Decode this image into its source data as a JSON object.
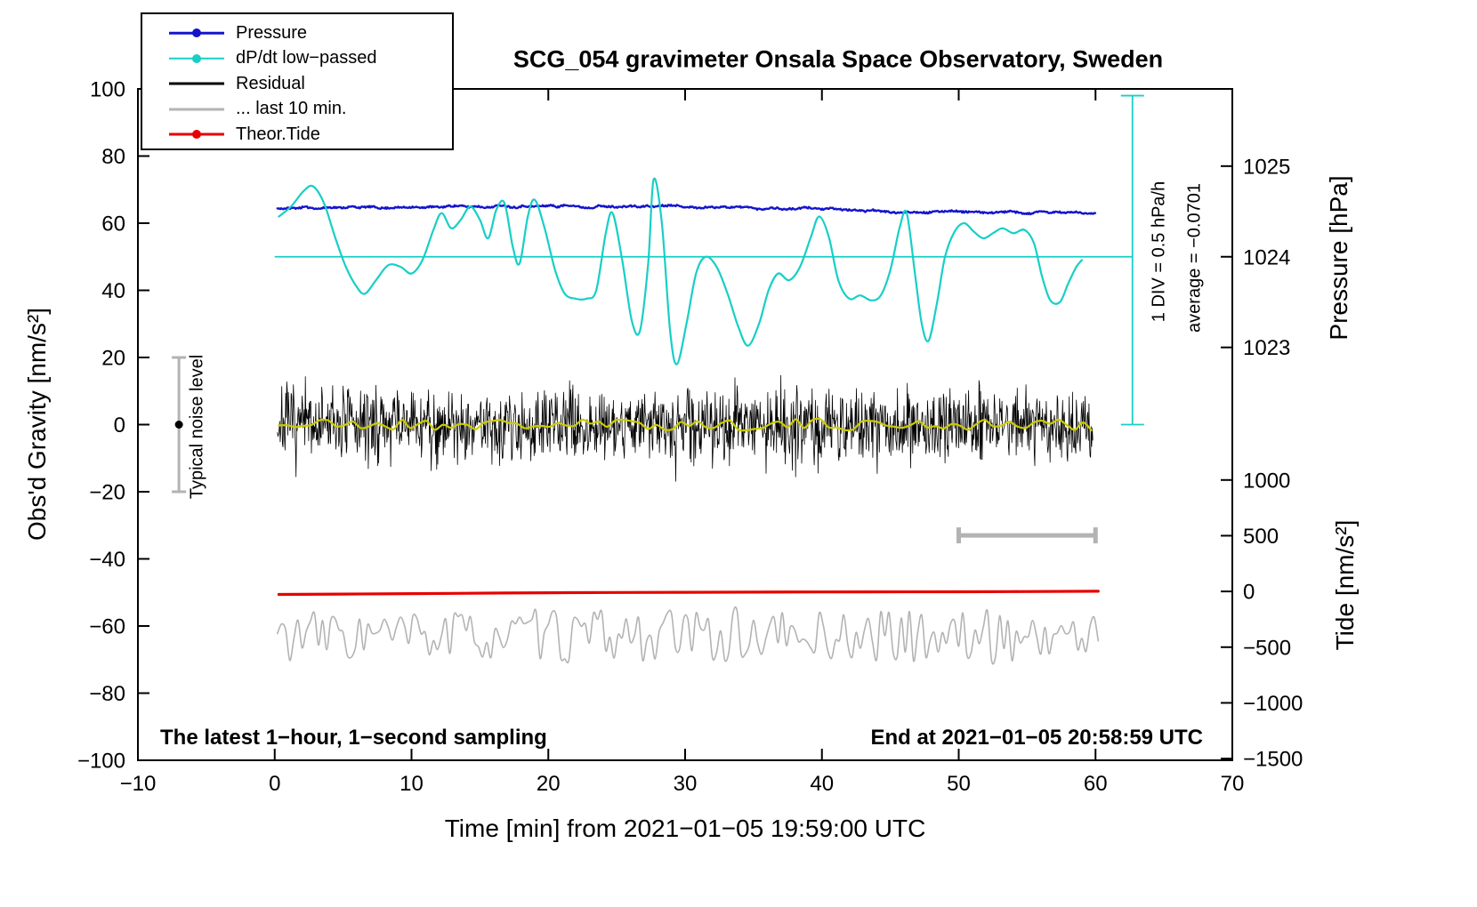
{
  "title": "SCG_054 gravimeter Onsala Space Observatory, Sweden",
  "notes": {
    "sampling": "The latest 1−hour, 1−second sampling",
    "end_time": "End at 2021−01−05 20:58:59 UTC"
  },
  "legend": {
    "items": [
      {
        "label": "Pressure",
        "color": "#1414cc",
        "dot": true,
        "lw": 2.5
      },
      {
        "label": "dP/dt low−passed",
        "color": "#17cfc6",
        "dot": true,
        "lw": 2.5
      },
      {
        "label": "Residual",
        "color": "#000000",
        "dot": false,
        "lw": 3
      },
      {
        "label": "... last 10 min.",
        "color": "#b3b3b3",
        "dot": false,
        "lw": 3
      },
      {
        "label": "Theor.Tide",
        "color": "#e60000",
        "dot": true,
        "lw": 3
      }
    ]
  },
  "chart_data": {
    "type": "line",
    "title": "SCG_054 gravimeter Onsala Space Observatory, Sweden",
    "xlabel": "Time [min] from 2021−01−05 19:59:00 UTC",
    "ylabel": "Obs'd Gravity [nm/s²]",
    "y2label_top": "Pressure [hPa]",
    "y2label_bottom": "Tide [nm/s²]",
    "xlim": [
      -10,
      70
    ],
    "ylim": [
      -100,
      100
    ],
    "grid": false,
    "legend_position": "top-left",
    "x_ticks": [
      {
        "v": -10,
        "label": "−10"
      },
      {
        "v": 0,
        "label": "0"
      },
      {
        "v": 10,
        "label": "10"
      },
      {
        "v": 20,
        "label": "20"
      },
      {
        "v": 30,
        "label": "30"
      },
      {
        "v": 40,
        "label": "40"
      },
      {
        "v": 50,
        "label": "50"
      },
      {
        "v": 60,
        "label": "60"
      },
      {
        "v": 70,
        "label": "70"
      }
    ],
    "y_ticks": [
      {
        "v": -100,
        "label": "−100"
      },
      {
        "v": -80,
        "label": "−80"
      },
      {
        "v": -60,
        "label": "−60"
      },
      {
        "v": -40,
        "label": "−40"
      },
      {
        "v": -20,
        "label": "−20"
      },
      {
        "v": 0,
        "label": "0"
      },
      {
        "v": 20,
        "label": "20"
      },
      {
        "v": 40,
        "label": "40"
      },
      {
        "v": 60,
        "label": "60"
      },
      {
        "v": 80,
        "label": "80"
      },
      {
        "v": 100,
        "label": "100"
      }
    ],
    "pressure_axis": {
      "ref": 1024,
      "g_at_ref": 50,
      "g_per_unit": 27,
      "ticks": [
        {
          "v": 1023,
          "label": "1023"
        },
        {
          "v": 1024,
          "label": "1024"
        },
        {
          "v": 1025,
          "label": "1025"
        }
      ]
    },
    "tide_axis": {
      "ref": 0,
      "g_at_ref": -49.7,
      "g_per_unit": 0.0332,
      "ticks": [
        {
          "v": -1500,
          "label": "−1500"
        },
        {
          "v": -1000,
          "label": "−1000"
        },
        {
          "v": -500,
          "label": "−500"
        },
        {
          "v": 0,
          "label": "0"
        },
        {
          "v": 500,
          "label": "500"
        },
        {
          "v": 1000,
          "label": "1000"
        }
      ]
    },
    "annotations": {
      "div_note": "1 DIV = 0.5 hPa/h",
      "average_note": "average = −0.0701",
      "noise_note": "Typical noise level",
      "ref_hline": {
        "y": 50,
        "x0": 0,
        "x1": 62.7,
        "color": "#17cfc6",
        "lw": 1.8
      },
      "scale_vline": {
        "x": 62.7,
        "y0": 0,
        "y1": 98,
        "cap": 13,
        "color": "#17cfc6",
        "lw": 1.8
      },
      "noise_bar": {
        "x": -7,
        "y0": -20,
        "y1": 20,
        "cap": 8,
        "color": "#b3b3b3",
        "lw": 3,
        "dot_color": "#000000",
        "dot_r": 4.5
      },
      "time_bar": {
        "x0": 50,
        "x1": 60,
        "y": -33,
        "cap": 9,
        "color": "#b3b3b3",
        "lw": 5
      }
    },
    "series": [
      {
        "name": "Pressure",
        "color": "#1414cc",
        "width": 2.4,
        "render": "trend_noise",
        "seed": 11,
        "step": 0.07,
        "noise_amp": 0.4,
        "noise_step": 0.5,
        "jitter": 0.5,
        "trend": [
          [
            0.2,
            64.3
          ],
          [
            3,
            64.6
          ],
          [
            6,
            64.7
          ],
          [
            9,
            64.8
          ],
          [
            12,
            64.8
          ],
          [
            15,
            65.0
          ],
          [
            18,
            65.0
          ],
          [
            21,
            65.1
          ],
          [
            24,
            64.9
          ],
          [
            26.5,
            65.0
          ],
          [
            28,
            65.3
          ],
          [
            30,
            64.9
          ],
          [
            32,
            64.7
          ],
          [
            34,
            64.9
          ],
          [
            35,
            64.5
          ],
          [
            37,
            64.4
          ],
          [
            39,
            64.3
          ],
          [
            41,
            64.1
          ],
          [
            43,
            63.9
          ],
          [
            45,
            63.5
          ],
          [
            46.5,
            63.2
          ],
          [
            48,
            63.4
          ],
          [
            50,
            63.3
          ],
          [
            52,
            63.25
          ],
          [
            54,
            63.1
          ],
          [
            56,
            63.15
          ],
          [
            58,
            63.1
          ],
          [
            60,
            63.2
          ]
        ]
      },
      {
        "name": "dP/dt low−passed",
        "color": "#17cfc6",
        "width": 2.2,
        "render": "smooth",
        "points": [
          [
            0.3,
            62
          ],
          [
            1.2,
            65
          ],
          [
            2.1,
            69.5
          ],
          [
            2.8,
            71
          ],
          [
            3.6,
            66
          ],
          [
            4.4,
            56
          ],
          [
            5.2,
            47
          ],
          [
            6.0,
            41
          ],
          [
            6.6,
            39
          ],
          [
            7.4,
            43
          ],
          [
            8.3,
            47.5
          ],
          [
            9.2,
            47
          ],
          [
            10.0,
            45
          ],
          [
            10.8,
            49
          ],
          [
            11.6,
            58
          ],
          [
            12.2,
            63
          ],
          [
            12.9,
            58.5
          ],
          [
            13.6,
            61
          ],
          [
            14.3,
            65
          ],
          [
            15.0,
            61
          ],
          [
            15.6,
            55.5
          ],
          [
            16.2,
            64
          ],
          [
            16.8,
            66
          ],
          [
            17.4,
            53
          ],
          [
            17.9,
            48
          ],
          [
            18.5,
            62
          ],
          [
            19.0,
            67
          ],
          [
            19.7,
            59
          ],
          [
            20.5,
            46
          ],
          [
            21.2,
            39
          ],
          [
            22.0,
            37.5
          ],
          [
            22.8,
            37.5
          ],
          [
            23.5,
            40
          ],
          [
            24.2,
            57
          ],
          [
            24.7,
            63
          ],
          [
            25.4,
            49
          ],
          [
            26.1,
            31
          ],
          [
            26.7,
            28
          ],
          [
            27.3,
            48
          ],
          [
            27.7,
            73
          ],
          [
            28.3,
            60
          ],
          [
            28.9,
            28
          ],
          [
            29.4,
            18
          ],
          [
            30.1,
            30
          ],
          [
            30.8,
            45
          ],
          [
            31.5,
            50
          ],
          [
            32.3,
            47
          ],
          [
            33.1,
            39
          ],
          [
            33.9,
            29
          ],
          [
            34.6,
            23.5
          ],
          [
            35.4,
            30
          ],
          [
            36.1,
            40
          ],
          [
            36.8,
            45
          ],
          [
            37.6,
            43
          ],
          [
            38.4,
            47
          ],
          [
            39.2,
            56
          ],
          [
            39.8,
            62
          ],
          [
            40.5,
            56
          ],
          [
            41.2,
            43
          ],
          [
            42.0,
            37.5
          ],
          [
            42.8,
            38.5
          ],
          [
            43.6,
            37
          ],
          [
            44.3,
            38.5
          ],
          [
            45.0,
            46
          ],
          [
            45.7,
            59
          ],
          [
            46.2,
            63
          ],
          [
            46.8,
            45
          ],
          [
            47.3,
            30
          ],
          [
            47.8,
            25
          ],
          [
            48.4,
            36
          ],
          [
            49.0,
            50
          ],
          [
            49.7,
            57.5
          ],
          [
            50.4,
            60
          ],
          [
            51.1,
            57.5
          ],
          [
            51.8,
            55.5
          ],
          [
            52.5,
            57
          ],
          [
            53.2,
            58.5
          ],
          [
            54.0,
            57
          ],
          [
            54.8,
            58
          ],
          [
            55.5,
            54
          ],
          [
            56.1,
            44
          ],
          [
            56.7,
            37
          ],
          [
            57.4,
            36.5
          ],
          [
            58.0,
            42
          ],
          [
            58.6,
            47
          ],
          [
            59.0,
            49
          ]
        ]
      },
      {
        "name": "Theor.Tide",
        "color": "#e60000",
        "width": 3.2,
        "render": "smooth",
        "points": [
          [
            0.3,
            -50.6
          ],
          [
            10,
            -50.35
          ],
          [
            20,
            -50.1
          ],
          [
            30,
            -49.95
          ],
          [
            40,
            -49.85
          ],
          [
            50,
            -49.8
          ],
          [
            60.2,
            -49.65
          ]
        ]
      },
      {
        "name": "... last 10 min.",
        "color": "#b3b3b3",
        "width": 1.6,
        "render": "smooth_noise",
        "seed": 33,
        "base": -63,
        "amp": 7.5,
        "ctrl_step": 0.3,
        "x0": 0.2,
        "x1": 60.2
      },
      {
        "name": "Residual",
        "color": "#000000",
        "width": 0.8,
        "render": "noise",
        "seed": 7,
        "base": 0,
        "sd": 5.5,
        "clip": 19,
        "step": 0.04,
        "x0": 0.2,
        "x1": 59.8
      },
      {
        "name": "Residual low−passed",
        "color": "#cccc00",
        "width": 2.2,
        "render": "smooth_noise",
        "seed": 21,
        "base": 0,
        "amp": 1.7,
        "ctrl_step": 0.6,
        "x0": 0.3,
        "x1": 59.7
      }
    ]
  }
}
